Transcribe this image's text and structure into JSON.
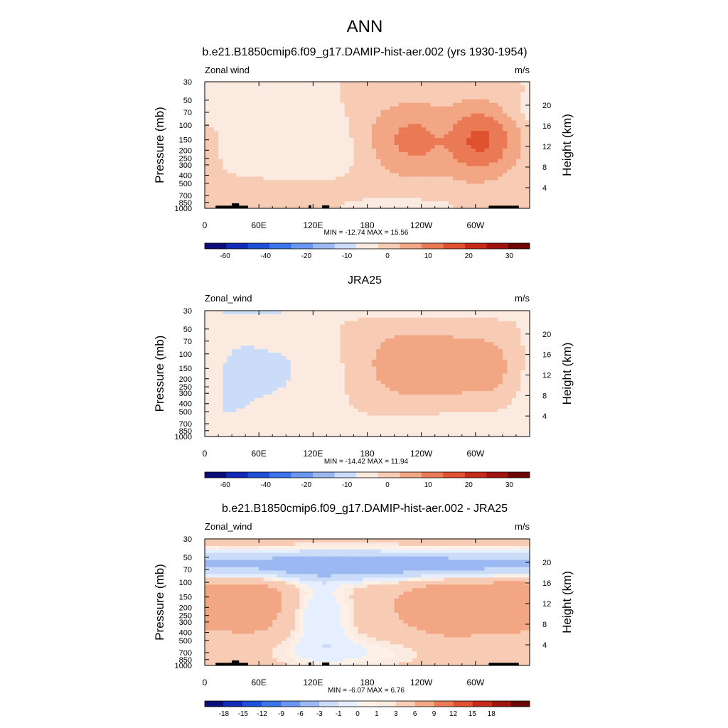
{
  "page_title": "ANN",
  "x_ticks": [
    "0",
    "60E",
    "120E",
    "180",
    "120W",
    "60W"
  ],
  "p_ticks": [
    {
      "p": 30,
      "label": "30"
    },
    {
      "p": 50,
      "label": "50"
    },
    {
      "p": 70,
      "label": "70"
    },
    {
      "p": 100,
      "label": "100"
    },
    {
      "p": 150,
      "label": "150"
    },
    {
      "p": 200,
      "label": "200"
    },
    {
      "p": 250,
      "label": "250"
    },
    {
      "p": 300,
      "label": "300"
    },
    {
      "p": 400,
      "label": "400"
    },
    {
      "p": 500,
      "label": "500"
    },
    {
      "p": 700,
      "label": "700"
    },
    {
      "p": 850,
      "label": "850"
    },
    {
      "p": 1000,
      "label": "1000"
    }
  ],
  "h_ticks": [
    {
      "km": 4,
      "label": "4"
    },
    {
      "km": 8,
      "label": "8"
    },
    {
      "km": 12,
      "label": "12"
    },
    {
      "km": 16,
      "label": "16"
    },
    {
      "km": 20,
      "label": "20"
    }
  ],
  "colors": {
    "ramp_main": [
      "#0a0d7a",
      "#0f2bb8",
      "#1d4fd9",
      "#3a73ea",
      "#6996ee",
      "#9bb8f3",
      "#cbdcf9",
      "#fbeae0",
      "#f7cbb4",
      "#f2a684",
      "#ea7a56",
      "#e0512f",
      "#c72a19",
      "#a0140d",
      "#6e0505"
    ],
    "ramp_diff": [
      "#0a0d7a",
      "#0f2bb8",
      "#1d4fd9",
      "#3a73ea",
      "#6996ee",
      "#9bb8f3",
      "#cbdcf9",
      "#e6efff",
      "#fdf1e7",
      "#fbeae0",
      "#f7cbb4",
      "#f2a684",
      "#ea7a56",
      "#e0512f",
      "#c72a19",
      "#a0140d",
      "#6e0505"
    ],
    "topo": "#000000"
  },
  "chart_data": [
    {
      "type": "heatmap",
      "title": "b.e21.B1850cmip6.f09_g17.DAMIP-hist-aer.002 (yrs 1930-1954)",
      "left_label": "Zonal wind",
      "right_label": "m/s",
      "ylabel": "Pressure (mb)",
      "ylabel_right": "Height (km)",
      "xlim": [
        0,
        360
      ],
      "ylim": [
        1000,
        30
      ],
      "stats_text": "MIN = -12.74  MAX =  15.56",
      "min": -12.74,
      "max": 15.56,
      "colorbar_ticks": [
        "-60",
        "-40",
        "-20",
        "-10",
        "0",
        "10",
        "20",
        "30"
      ],
      "colorbar_tick_pos": [
        1,
        3,
        5,
        7,
        9,
        11,
        13,
        15
      ],
      "topography": true,
      "base_value": 2,
      "features": [
        {
          "lon": 130,
          "p": 170,
          "dlon": 60,
          "dlogp": 0.35,
          "amp": -9
        },
        {
          "lon": 225,
          "p": 155,
          "dlon": 85,
          "dlogp": 0.45,
          "amp": 9
        },
        {
          "lon": 225,
          "p": 150,
          "dlon": 40,
          "dlogp": 0.28,
          "amp": 6
        },
        {
          "lon": 305,
          "p": 150,
          "dlon": 30,
          "dlogp": 0.3,
          "amp": 12
        },
        {
          "lon": 85,
          "p": 650,
          "dlon": 60,
          "dlogp": 0.2,
          "amp": 4
        },
        {
          "lon": 15,
          "p": 65,
          "dlon": 25,
          "dlogp": 0.12,
          "amp": -5
        },
        {
          "lon": 210,
          "p": 930,
          "dlon": 35,
          "dlogp": 0.06,
          "amp": -5
        },
        {
          "lon": 270,
          "p": 140,
          "dlon": 20,
          "dlogp": 0.3,
          "amp": -5
        }
      ]
    },
    {
      "type": "heatmap",
      "title": "JRA25",
      "left_label": "Zonal_wind",
      "right_label": "m/s",
      "ylabel": "Pressure (mb)",
      "ylabel_right": "Height (km)",
      "xlim": [
        0,
        360
      ],
      "ylim": [
        1000,
        30
      ],
      "stats_text": "MIN = -14.42  MAX =  11.94",
      "min": -14.42,
      "max": 11.94,
      "colorbar_ticks": [
        "-60",
        "-40",
        "-20",
        "-10",
        "0",
        "10",
        "20",
        "30"
      ],
      "colorbar_tick_pos": [
        1,
        3,
        5,
        7,
        9,
        11,
        13,
        15
      ],
      "topography": false,
      "base_value": 2,
      "features": [
        {
          "lon": 80,
          "p": 160,
          "dlon": 60,
          "dlogp": 0.4,
          "amp": -9
        },
        {
          "lon": 225,
          "p": 140,
          "dlon": 70,
          "dlogp": 0.45,
          "amp": 9
        },
        {
          "lon": 330,
          "p": 150,
          "dlon": 35,
          "dlogp": 0.35,
          "amp": 6
        },
        {
          "lon": 20,
          "p": 300,
          "dlon": 25,
          "dlogp": 0.6,
          "amp": -5
        },
        {
          "lon": 270,
          "p": 800,
          "dlon": 70,
          "dlogp": 0.2,
          "amp": -4
        },
        {
          "lon": 180,
          "p": 30,
          "dlon": 400,
          "dlogp": 0.06,
          "amp": -6
        }
      ]
    },
    {
      "type": "heatmap",
      "title": "b.e21.B1850cmip6.f09_g17.DAMIP-hist-aer.002 - JRA25",
      "left_label": "Zonal_wind",
      "right_label": "m/s",
      "ylabel": "Pressure (mb)",
      "ylabel_right": "Height (km)",
      "xlim": [
        0,
        360
      ],
      "ylim": [
        1000,
        30
      ],
      "stats_text": "MIN = -6.07  MAX =  6.76",
      "min": -6.07,
      "max": 6.76,
      "colorbar_ticks": [
        "-18",
        "-15",
        "-12",
        "-9",
        "-6",
        "-3",
        "-1",
        "0",
        "1",
        "3",
        "6",
        "9",
        "12",
        "15",
        "18"
      ],
      "colorbar_tick_pos": [
        1,
        2,
        3,
        4,
        5,
        6,
        7,
        8,
        9,
        10,
        11,
        12,
        13,
        14,
        15
      ],
      "topography": true,
      "base_value": 2,
      "features": [
        {
          "lon": 180,
          "p": 62,
          "dlon": 400,
          "dlogp": 0.13,
          "amp": -7
        },
        {
          "lon": 50,
          "p": 160,
          "dlon": 30,
          "dlogp": 0.3,
          "amp": 3
        },
        {
          "lon": 270,
          "p": 180,
          "dlon": 40,
          "dlogp": 0.3,
          "amp": 3
        },
        {
          "lon": 340,
          "p": 150,
          "dlon": 25,
          "dlogp": 0.25,
          "amp": 3
        },
        {
          "lon": 130,
          "p": 250,
          "dlon": 25,
          "dlogp": 0.3,
          "amp": -3
        },
        {
          "lon": 160,
          "p": 700,
          "dlon": 80,
          "dlogp": 0.15,
          "amp": -2
        }
      ]
    }
  ]
}
